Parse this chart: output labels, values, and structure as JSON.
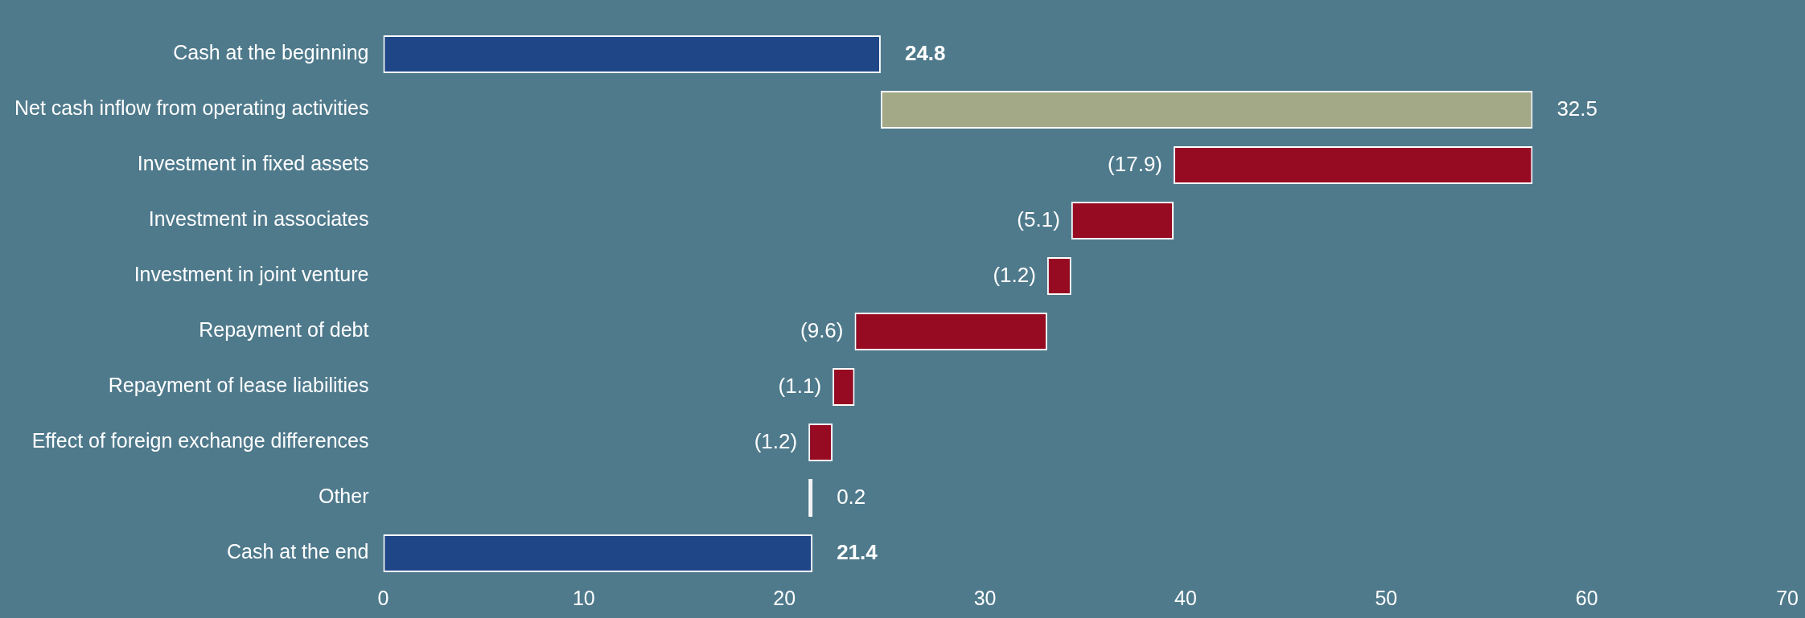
{
  "chart_data": {
    "type": "bar",
    "orientation": "horizontal",
    "categories": [
      "Cash at the beginning",
      "Net cash inflow from operating activities",
      "Investment in fixed assets",
      "Investment in associates",
      "Investment in joint venture",
      "Repayment of debt",
      "Repayment of lease liabilities",
      "Effect of foreign exchange differences",
      "Other",
      "Cash at the end"
    ],
    "values": [
      24.8,
      32.5,
      -17.9,
      -5.1,
      -1.2,
      -9.6,
      -1.1,
      -1.2,
      0.2,
      21.4
    ],
    "base": [
      0,
      24.8,
      57.3,
      39.4,
      34.3,
      33.1,
      23.5,
      22.4,
      21.2,
      0
    ],
    "colors": [
      "#1f4788",
      "#a3a986",
      "#960a22",
      "#960a22",
      "#960a22",
      "#960a22",
      "#960a22",
      "#960a22",
      "#ffffff",
      "#1f4788"
    ],
    "value_labels": [
      "24.8",
      "32.5",
      "(17.9)",
      "(5.1)",
      "(1.2)",
      "(9.6)",
      "(1.1)",
      "(1.2)",
      "0.2",
      "21.4"
    ],
    "xlim": [
      0,
      70
    ],
    "xticks": [
      0,
      10,
      20,
      30,
      40,
      50,
      60,
      70
    ],
    "grid": false,
    "legend": false
  }
}
